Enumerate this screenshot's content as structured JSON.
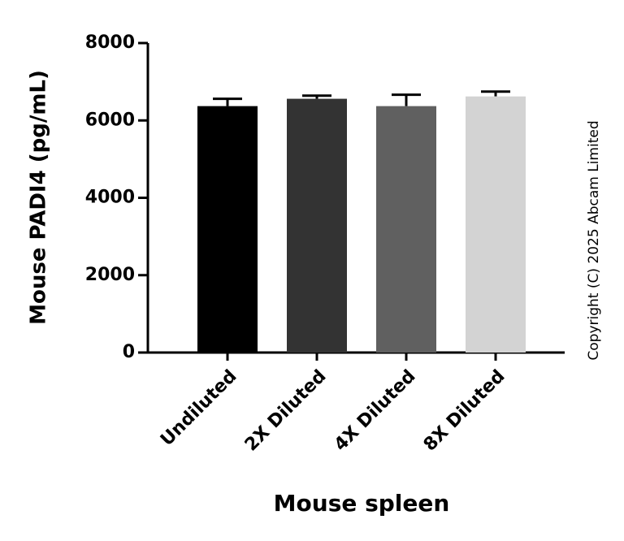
{
  "chart_data": {
    "type": "bar",
    "y_label": "Mouse PADI4 (pg/mL)",
    "x_label": "Mouse spleen",
    "annotation": "Copyright (C) 2025 Abcam Limited",
    "categories": [
      "Undiluted",
      "2X Diluted",
      "4X Diluted",
      "8X Diluted"
    ],
    "values": [
      6370,
      6560,
      6370,
      6620
    ],
    "errors": [
      190,
      80,
      295,
      125
    ],
    "colors": [
      "#000000",
      "#333333",
      "#606060",
      "#d3d3d3"
    ],
    "ylim": [
      0,
      8000
    ],
    "yticks": [
      0,
      2000,
      4000,
      6000,
      8000
    ]
  }
}
